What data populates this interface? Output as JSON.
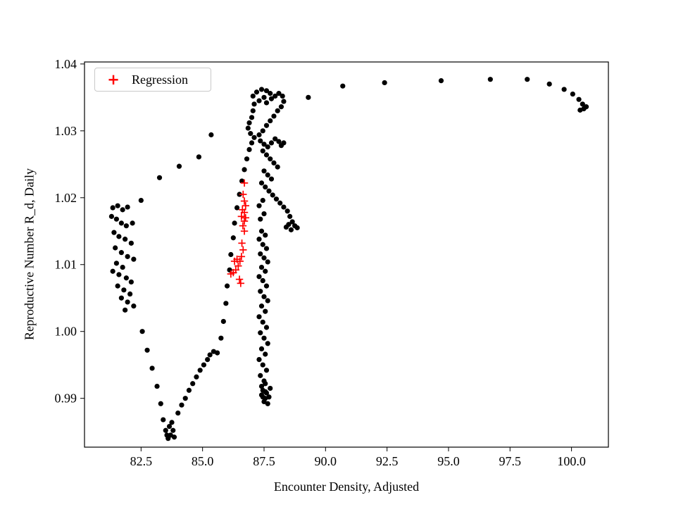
{
  "figure": {
    "background": "#ffffff"
  },
  "chart_data": {
    "type": "scatter",
    "title": "",
    "xlabel": "Encounter Density, Adjusted",
    "ylabel": "Reproductive Number R_d, Daily",
    "xlim": [
      80.2,
      101.5
    ],
    "ylim": [
      0.9827,
      1.0403
    ],
    "grid": false,
    "x_ticks": [
      82.5,
      85.0,
      87.5,
      90.0,
      92.5,
      95.0,
      97.5,
      100.0
    ],
    "x_tick_labels": [
      "82.5",
      "85.0",
      "87.5",
      "90.0",
      "92.5",
      "95.0",
      "97.5",
      "100.0"
    ],
    "y_ticks": [
      0.99,
      1.0,
      1.01,
      1.02,
      1.03,
      1.04
    ],
    "y_tick_labels": [
      "0.99",
      "1.00",
      "1.01",
      "1.02",
      "1.03",
      "1.04"
    ],
    "legend": {
      "position": "upper-left",
      "entries": [
        {
          "label": "Regression",
          "marker": "plus",
          "color": "#ff0000"
        }
      ]
    },
    "series": [
      {
        "name": "trajectory",
        "marker": "circle",
        "color": "#000000",
        "points": [
          [
            81.35,
            1.0185
          ],
          [
            81.55,
            1.0188
          ],
          [
            81.75,
            1.0182
          ],
          [
            81.95,
            1.0186
          ],
          [
            81.3,
            1.0172
          ],
          [
            81.5,
            1.0168
          ],
          [
            81.7,
            1.0162
          ],
          [
            81.9,
            1.0158
          ],
          [
            82.15,
            1.0162
          ],
          [
            81.4,
            1.0148
          ],
          [
            81.6,
            1.0142
          ],
          [
            81.85,
            1.0138
          ],
          [
            82.1,
            1.0132
          ],
          [
            81.45,
            1.0125
          ],
          [
            81.7,
            1.0118
          ],
          [
            81.95,
            1.0112
          ],
          [
            82.2,
            1.0108
          ],
          [
            81.5,
            1.0102
          ],
          [
            81.75,
            1.0096
          ],
          [
            81.35,
            1.009
          ],
          [
            81.6,
            1.0085
          ],
          [
            81.9,
            1.008
          ],
          [
            82.1,
            1.0074
          ],
          [
            81.55,
            1.0068
          ],
          [
            81.8,
            1.0062
          ],
          [
            82.05,
            1.0056
          ],
          [
            81.7,
            1.005
          ],
          [
            81.95,
            1.0044
          ],
          [
            82.2,
            1.0038
          ],
          [
            81.85,
            1.0032
          ],
          [
            82.5,
            1.0196
          ],
          [
            83.25,
            1.023
          ],
          [
            84.05,
            1.0247
          ],
          [
            84.85,
            1.0261
          ],
          [
            85.35,
            1.0294
          ],
          [
            89.3,
            1.035
          ],
          [
            90.7,
            1.0367
          ],
          [
            92.4,
            1.0372
          ],
          [
            94.7,
            1.0375
          ],
          [
            96.7,
            1.0377
          ],
          [
            98.2,
            1.0377
          ],
          [
            99.1,
            1.037
          ],
          [
            99.7,
            1.0362
          ],
          [
            100.05,
            1.0355
          ],
          [
            100.3,
            1.0347
          ],
          [
            100.45,
            1.034
          ],
          [
            100.5,
            1.0333
          ],
          [
            100.35,
            1.0331
          ],
          [
            100.6,
            1.0336
          ],
          [
            87.05,
            1.0352
          ],
          [
            87.2,
            1.0358
          ],
          [
            87.4,
            1.0362
          ],
          [
            87.6,
            1.036
          ],
          [
            87.75,
            1.0356
          ],
          [
            87.5,
            1.035
          ],
          [
            87.3,
            1.0345
          ],
          [
            87.6,
            1.0342
          ],
          [
            87.8,
            1.0348
          ],
          [
            87.95,
            1.0352
          ],
          [
            88.1,
            1.0356
          ],
          [
            88.25,
            1.0352
          ],
          [
            88.3,
            1.0344
          ],
          [
            88.2,
            1.0336
          ],
          [
            88.05,
            1.033
          ],
          [
            87.9,
            1.0322
          ],
          [
            87.75,
            1.0315
          ],
          [
            87.6,
            1.0308
          ],
          [
            87.45,
            1.03
          ],
          [
            87.3,
            1.0294
          ],
          [
            87.1,
            1.029
          ],
          [
            86.95,
            1.0296
          ],
          [
            86.85,
            1.0304
          ],
          [
            86.9,
            1.0312
          ],
          [
            87.0,
            1.032
          ],
          [
            87.05,
            1.033
          ],
          [
            87.1,
            1.034
          ],
          [
            87.35,
            1.0285
          ],
          [
            87.5,
            1.028
          ],
          [
            87.65,
            1.0276
          ],
          [
            87.8,
            1.0282
          ],
          [
            87.95,
            1.0288
          ],
          [
            88.1,
            1.0284
          ],
          [
            88.2,
            1.0278
          ],
          [
            88.3,
            1.0282
          ],
          [
            87.45,
            1.027
          ],
          [
            87.6,
            1.0264
          ],
          [
            87.75,
            1.0258
          ],
          [
            87.9,
            1.0252
          ],
          [
            88.05,
            1.0246
          ],
          [
            87.5,
            1.024
          ],
          [
            87.65,
            1.0234
          ],
          [
            87.8,
            1.0228
          ],
          [
            87.4,
            1.0222
          ],
          [
            87.55,
            1.0216
          ],
          [
            87.7,
            1.021
          ],
          [
            87.85,
            1.0204
          ],
          [
            88.0,
            1.0198
          ],
          [
            88.15,
            1.0192
          ],
          [
            88.3,
            1.0186
          ],
          [
            88.45,
            1.018
          ],
          [
            88.55,
            1.0172
          ],
          [
            88.65,
            1.0164
          ],
          [
            88.75,
            1.0158
          ],
          [
            88.85,
            1.0155
          ],
          [
            88.6,
            1.0152
          ],
          [
            88.4,
            1.0156
          ],
          [
            88.5,
            1.016
          ],
          [
            87.45,
            1.0196
          ],
          [
            87.3,
            1.0188
          ],
          [
            87.5,
            1.0176
          ],
          [
            87.35,
            1.0168
          ],
          [
            87.4,
            1.015
          ],
          [
            87.55,
            1.0144
          ],
          [
            87.3,
            1.0138
          ],
          [
            87.45,
            1.013
          ],
          [
            87.6,
            1.0124
          ],
          [
            87.35,
            1.0116
          ],
          [
            87.5,
            1.011
          ],
          [
            87.65,
            1.0104
          ],
          [
            87.4,
            1.0096
          ],
          [
            87.55,
            1.009
          ],
          [
            87.3,
            1.0082
          ],
          [
            87.45,
            1.0076
          ],
          [
            87.6,
            1.0068
          ],
          [
            87.35,
            1.006
          ],
          [
            87.5,
            1.0052
          ],
          [
            87.65,
            1.0046
          ],
          [
            87.4,
            1.0038
          ],
          [
            87.55,
            1.003
          ],
          [
            87.3,
            1.0022
          ],
          [
            87.45,
            1.0014
          ],
          [
            87.6,
            1.0006
          ],
          [
            87.35,
            0.9998
          ],
          [
            87.5,
            0.999
          ],
          [
            87.65,
            0.9982
          ],
          [
            87.4,
            0.9974
          ],
          [
            87.55,
            0.9966
          ],
          [
            87.3,
            0.9958
          ],
          [
            87.45,
            0.995
          ],
          [
            87.6,
            0.9942
          ],
          [
            87.35,
            0.9934
          ],
          [
            87.5,
            0.9926
          ],
          [
            87.4,
            0.9918
          ],
          [
            87.55,
            0.991
          ],
          [
            87.45,
            0.9902
          ],
          [
            87.4,
            0.9905
          ],
          [
            87.55,
            0.99
          ],
          [
            87.7,
            0.9902
          ],
          [
            87.5,
            0.9895
          ],
          [
            87.65,
            0.9892
          ],
          [
            87.45,
            0.9912
          ],
          [
            87.6,
            0.9908
          ],
          [
            87.75,
            0.9915
          ],
          [
            87.55,
            0.9922
          ],
          [
            82.55,
            1.0
          ],
          [
            82.75,
            0.9972
          ],
          [
            82.95,
            0.9945
          ],
          [
            83.15,
            0.9918
          ],
          [
            83.3,
            0.9892
          ],
          [
            83.4,
            0.9868
          ],
          [
            83.5,
            0.9852
          ],
          [
            83.6,
            0.984
          ],
          [
            83.7,
            0.9845
          ],
          [
            83.8,
            0.9852
          ],
          [
            83.65,
            0.9858
          ],
          [
            83.75,
            0.9864
          ],
          [
            83.55,
            0.9845
          ],
          [
            83.85,
            0.9842
          ],
          [
            84.0,
            0.9878
          ],
          [
            84.15,
            0.989
          ],
          [
            84.3,
            0.99
          ],
          [
            84.45,
            0.9912
          ],
          [
            84.6,
            0.9922
          ],
          [
            84.75,
            0.9932
          ],
          [
            84.9,
            0.9942
          ],
          [
            85.05,
            0.995
          ],
          [
            85.2,
            0.9958
          ],
          [
            85.3,
            0.9965
          ],
          [
            85.45,
            0.997
          ],
          [
            85.6,
            0.9968
          ],
          [
            85.75,
            0.999
          ],
          [
            85.85,
            1.0015
          ],
          [
            85.95,
            1.0042
          ],
          [
            86.0,
            1.0068
          ],
          [
            86.1,
            1.0092
          ],
          [
            86.15,
            1.0115
          ],
          [
            86.25,
            1.014
          ],
          [
            86.3,
            1.0162
          ],
          [
            86.4,
            1.0185
          ],
          [
            86.5,
            1.0205
          ],
          [
            86.6,
            1.0225
          ],
          [
            86.7,
            1.0242
          ],
          [
            86.8,
            1.0258
          ],
          [
            86.9,
            1.0272
          ],
          [
            87.0,
            1.0282
          ]
        ]
      },
      {
        "name": "Regression",
        "marker": "plus",
        "color": "#ff0000",
        "points": [
          [
            86.7,
            1.0222
          ],
          [
            86.65,
            1.0205
          ],
          [
            86.7,
            1.0195
          ],
          [
            86.75,
            1.0188
          ],
          [
            86.62,
            1.0182
          ],
          [
            86.7,
            1.0178
          ],
          [
            86.58,
            1.0172
          ],
          [
            86.75,
            1.017
          ],
          [
            86.7,
            1.0165
          ],
          [
            86.64,
            1.0158
          ],
          [
            86.7,
            1.015
          ],
          [
            86.6,
            1.0132
          ],
          [
            86.65,
            1.0122
          ],
          [
            86.58,
            1.0112
          ],
          [
            86.52,
            1.0105
          ],
          [
            86.4,
            1.0108
          ],
          [
            86.3,
            1.0105
          ],
          [
            86.45,
            1.0098
          ],
          [
            86.35,
            1.0092
          ],
          [
            86.25,
            1.0088
          ],
          [
            86.15,
            1.0086
          ],
          [
            86.5,
            1.0078
          ],
          [
            86.55,
            1.0072
          ]
        ]
      }
    ]
  }
}
